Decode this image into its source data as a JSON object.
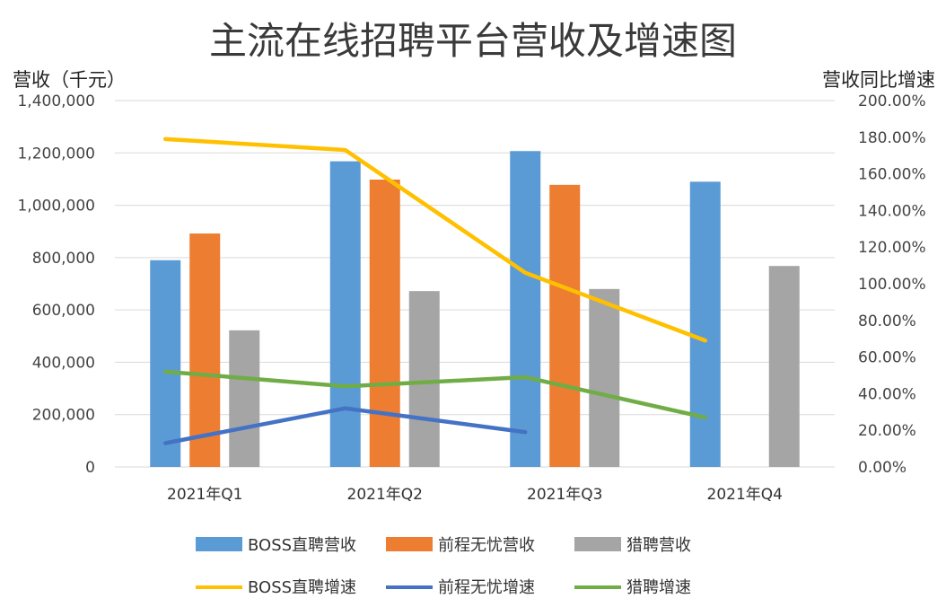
{
  "chart_data": {
    "type": "bar",
    "title": "主流在线招聘平台营收及增速图",
    "ylabel": "营收（千元）",
    "y2label": "营收同比增速",
    "categories": [
      "2021年Q1",
      "2021年Q2",
      "2021年Q3",
      "2021年Q4"
    ],
    "ylim": [
      0,
      1400000
    ],
    "y2lim": [
      0,
      200
    ],
    "yticks": [
      "0",
      "200,000",
      "400,000",
      "600,000",
      "800,000",
      "1,000,000",
      "1,200,000",
      "1,400,000"
    ],
    "y2ticks": [
      "0.00%",
      "20.00%",
      "40.00%",
      "60.00%",
      "80.00%",
      "100.00%",
      "120.00%",
      "140.00%",
      "160.00%",
      "180.00%",
      "200.00%"
    ],
    "grid": true,
    "legend_position": "bottom",
    "bar_series": [
      {
        "name": "BOSS直聘营收",
        "color": "#5b9bd5",
        "values": [
          790000,
          1168000,
          1207000,
          1090000
        ]
      },
      {
        "name": "前程无忧营收",
        "color": "#ed7d31",
        "values": [
          892000,
          1098000,
          1078000,
          null
        ]
      },
      {
        "name": "猎聘营收",
        "color": "#a5a5a5",
        "values": [
          522000,
          672000,
          680000,
          768000
        ]
      }
    ],
    "line_series": [
      {
        "name": "BOSS直聘增速",
        "color": "#ffc000",
        "axis": "right",
        "values": [
          179,
          173,
          106,
          69
        ]
      },
      {
        "name": "前程无忧增速",
        "color": "#4472c4",
        "axis": "right",
        "values": [
          13,
          32,
          19,
          null
        ]
      },
      {
        "name": "猎聘增速",
        "color": "#70ad47",
        "axis": "right",
        "values": [
          52,
          44,
          49,
          27
        ]
      }
    ]
  }
}
